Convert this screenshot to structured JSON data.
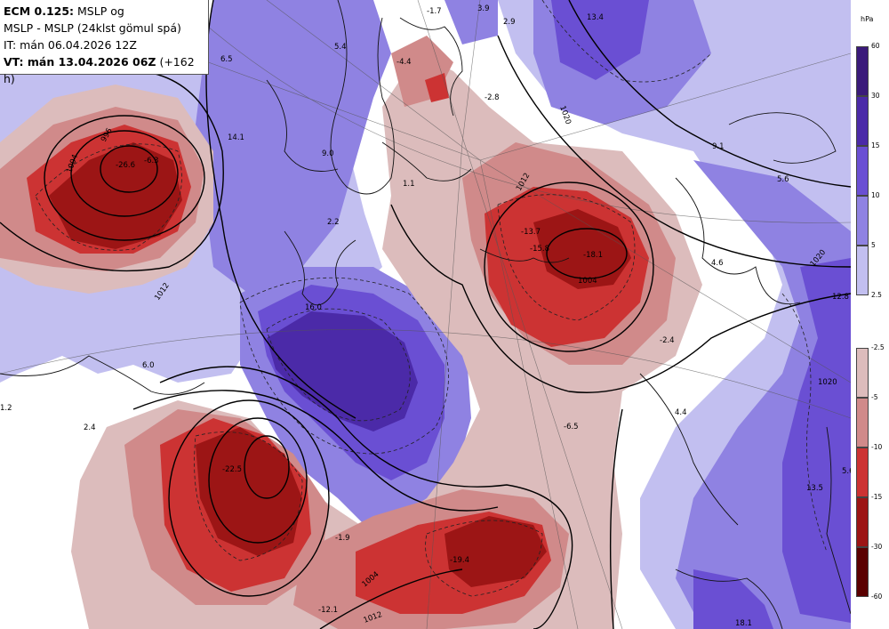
{
  "header": {
    "model_bold": "ECM 0.125:",
    "model_rest": " MSLP og",
    "line2": "MSLP - MSLP (24klst gömul spá)",
    "line3": "IT: mán 06.04.2026 12Z",
    "line4_bold": "VT: mán 13.04.2026 06Z",
    "line4_rest": " (+162 h)"
  },
  "colorbar": {
    "unit": "hPa",
    "positive": [
      {
        "label": "60",
        "color": "#3a1a7a"
      },
      {
        "label": "30",
        "color": "#4b2aa8"
      },
      {
        "label": "15",
        "color": "#6a4fd3"
      },
      {
        "label": "10",
        "color": "#8f82e2"
      },
      {
        "label": "5",
        "color": "#c2bff0"
      },
      {
        "label": "2.5",
        "color": ""
      }
    ],
    "negative": [
      {
        "label": "-2.5",
        "color": "#dcbcbc"
      },
      {
        "label": "-5",
        "color": "#d08a8a"
      },
      {
        "label": "-10",
        "color": "#cc3333"
      },
      {
        "label": "-15",
        "color": "#9c1515"
      },
      {
        "label": "-30",
        "color": "#5a0000"
      },
      {
        "label": "-60",
        "color": ""
      }
    ]
  },
  "isobar_labels": [
    "1004",
    "996",
    "1012",
    "1020",
    "1004",
    "1012",
    "1020",
    "1020",
    "1004",
    "1012"
  ],
  "anomaly_labels": [
    "-1.7",
    "3.9",
    "2.9",
    "13.4",
    "5.4",
    "-4.4",
    "6.5",
    "-2.8",
    "14.1",
    "9.0",
    "-6.3",
    "-26.6",
    "1.1",
    "2.2",
    "-13.7",
    "-15.8",
    "-18.1",
    "9.1",
    "5.6",
    "4.6",
    "12.8",
    "16.0",
    "6.0",
    "-2.4",
    "1.2",
    "2.4",
    "-6.5",
    "4.4",
    "-22.5",
    "-1.9",
    "-19.4",
    "-12.1",
    "13.5",
    "5.6",
    "18.1"
  ]
}
